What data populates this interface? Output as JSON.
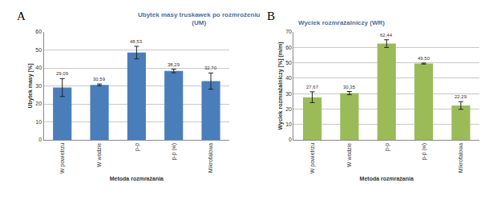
{
  "chart_data": [
    {
      "type": "bar",
      "annotation": "A",
      "title": "Ubytek masy truskawek po rozmrożeniu\n(UM)",
      "x_label": "Metoda rozmrażania",
      "y_label": "Ubytek masy [%]",
      "categories": [
        "W powietrzu",
        "W wodzie",
        "p-p",
        "p-p (w)",
        "Mikrofalowa"
      ],
      "values": [
        29.09,
        30.59,
        48.53,
        38.29,
        32.7
      ],
      "value_labels": [
        "29,09",
        "30,59",
        "48,53",
        "38,29",
        "32,70"
      ],
      "errors": [
        5,
        0.5,
        3.5,
        1,
        4.5
      ],
      "color": "#4a7ebb",
      "ylim": [
        0,
        60
      ],
      "yticks": [
        0,
        10,
        20,
        30,
        40,
        50,
        60
      ],
      "grid": true,
      "data_labels": true
    },
    {
      "type": "bar",
      "annotation": "B",
      "title": "Wyciek rozmrażalniczy (WR)",
      "x_label": "Metoda rozmrażania",
      "y_label": "Wyciek rozmrażalniczy [%] (m/m)",
      "categories": [
        "W powietrzu",
        "W wodzie",
        "p-p",
        "p-p (w)",
        "Mikrofalowa"
      ],
      "values": [
        27.67,
        30.35,
        62.44,
        49.5,
        22.29
      ],
      "value_labels": [
        "27,67",
        "30,35",
        "62,44",
        "49,50",
        "22,29"
      ],
      "errors": [
        3.5,
        1,
        2.5,
        0.3,
        2.5
      ],
      "color": "#9bbb59",
      "ylim": [
        0,
        70
      ],
      "yticks": [
        0,
        10,
        20,
        30,
        40,
        50,
        60,
        70
      ],
      "grid": true,
      "data_labels": true
    }
  ]
}
